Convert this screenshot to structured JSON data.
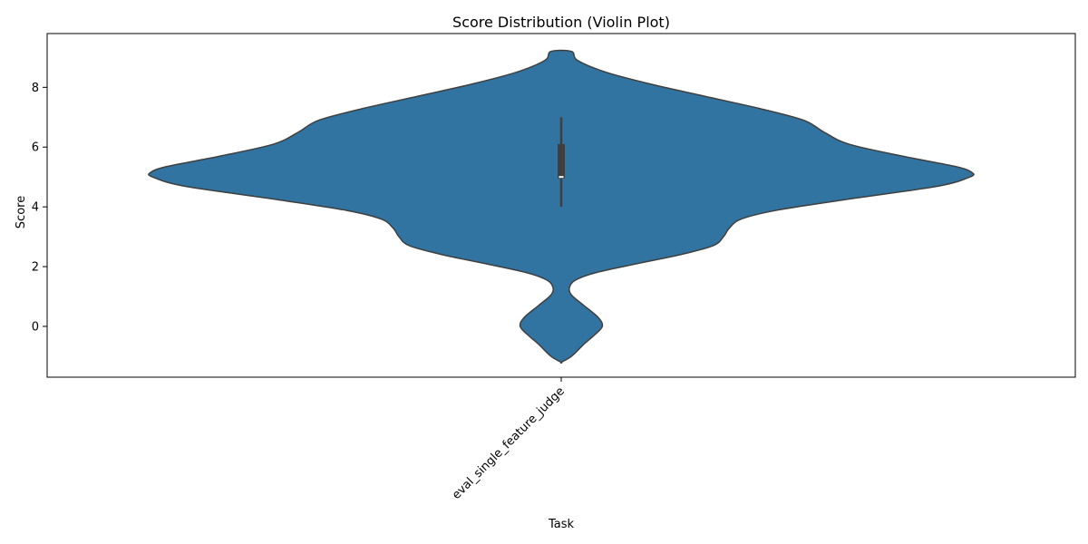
{
  "chart_data": {
    "type": "violin",
    "title": "Score Distribution (Violin Plot)",
    "xlabel": "Task",
    "ylabel": "Score",
    "categories": [
      "eval_single_feature_judge"
    ],
    "ylim": [
      -1.7,
      9.8
    ],
    "yticks": [
      0,
      2,
      4,
      6,
      8
    ],
    "grid": false,
    "violin_color": "#3274a1",
    "edge_color": "#3f3f3f",
    "violins": [
      {
        "category": "eval_single_feature_judge",
        "profile": [
          {
            "y": -1.2,
            "w": 0.0
          },
          {
            "y": -1.0,
            "w": 0.025
          },
          {
            "y": -0.6,
            "w": 0.055
          },
          {
            "y": -0.3,
            "w": 0.08
          },
          {
            "y": 0.0,
            "w": 0.1
          },
          {
            "y": 0.3,
            "w": 0.09
          },
          {
            "y": 0.7,
            "w": 0.055
          },
          {
            "y": 1.05,
            "w": 0.025
          },
          {
            "y": 1.3,
            "w": 0.02
          },
          {
            "y": 1.55,
            "w": 0.035
          },
          {
            "y": 1.8,
            "w": 0.085
          },
          {
            "y": 2.1,
            "w": 0.185
          },
          {
            "y": 2.4,
            "w": 0.29
          },
          {
            "y": 2.7,
            "w": 0.37
          },
          {
            "y": 3.0,
            "w": 0.395
          },
          {
            "y": 3.3,
            "w": 0.41
          },
          {
            "y": 3.6,
            "w": 0.44
          },
          {
            "y": 3.9,
            "w": 0.53
          },
          {
            "y": 4.3,
            "w": 0.72
          },
          {
            "y": 4.7,
            "w": 0.92
          },
          {
            "y": 5.0,
            "w": 0.995
          },
          {
            "y": 5.15,
            "w": 1.0
          },
          {
            "y": 5.35,
            "w": 0.96
          },
          {
            "y": 5.7,
            "w": 0.83
          },
          {
            "y": 6.1,
            "w": 0.7
          },
          {
            "y": 6.5,
            "w": 0.64
          },
          {
            "y": 6.9,
            "w": 0.59
          },
          {
            "y": 7.3,
            "w": 0.48
          },
          {
            "y": 7.7,
            "w": 0.35
          },
          {
            "y": 8.1,
            "w": 0.22
          },
          {
            "y": 8.5,
            "w": 0.11
          },
          {
            "y": 8.9,
            "w": 0.04
          },
          {
            "y": 9.2,
            "w": 0.025
          }
        ],
        "box": {
          "whisker_low": 4,
          "q1": 4.95,
          "median": 5,
          "q3": 6.1,
          "whisker_high": 7
        }
      }
    ]
  }
}
